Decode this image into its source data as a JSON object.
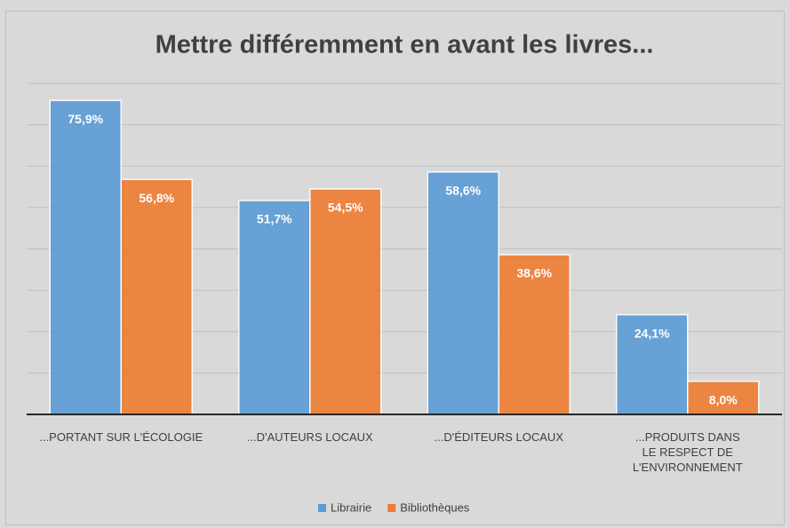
{
  "chart_data": {
    "type": "bar",
    "title": "Mettre différemment en avant les livres...",
    "categories": [
      "...PORTANT SUR L'ÉCOLOGIE",
      "...D'AUTEURS LOCAUX",
      "...D'ÉDITEURS LOCAUX",
      "...PRODUITS DANS LE RESPECT DE L'ENVIRONNEMENT"
    ],
    "series": [
      {
        "name": "Librairie",
        "color": "#5b9bd5",
        "values": [
          75.9,
          51.7,
          58.6,
          24.1
        ],
        "value_labels": [
          "75,9%",
          "51,7%",
          "58,6%",
          "24,1%"
        ]
      },
      {
        "name": "Bibliothèques",
        "color": "#ed7d31",
        "values": [
          56.8,
          54.5,
          38.6,
          8.0
        ],
        "value_labels": [
          "56,8%",
          "54,5%",
          "38,6%",
          "8,0%"
        ]
      }
    ],
    "ylim": [
      0,
      80
    ],
    "yticks": [
      0,
      10,
      20,
      30,
      40,
      50,
      60,
      70,
      80
    ],
    "grid": true,
    "show_ytick_labels": false,
    "legend": "bottom"
  }
}
